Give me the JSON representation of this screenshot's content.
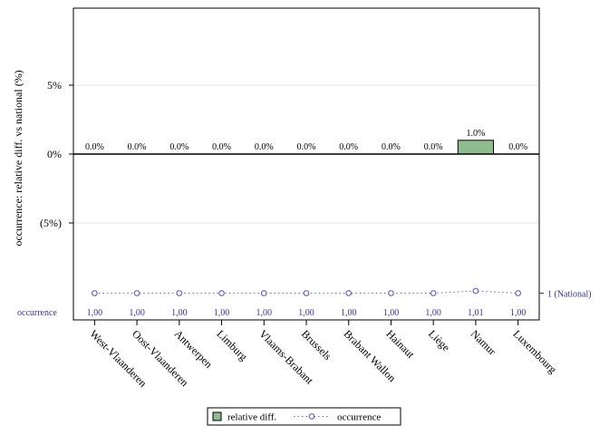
{
  "chart_data": {
    "type": "bar",
    "title": "",
    "xlabel": "",
    "ylabel": "occurrence: relative diff. vs national (%)",
    "ylim": [
      -0.1,
      0.1
    ],
    "yticks": [
      {
        "value": 0.05,
        "label": "5%"
      },
      {
        "value": 0.0,
        "label": "0%"
      },
      {
        "value": -0.05,
        "label": "(5%)"
      }
    ],
    "grid": true,
    "categories": [
      "West-Vlaanderen",
      "Oost-Vlaanderen",
      "Antwerpen",
      "Limburg",
      "Vlaams-Brabant",
      "Brussels",
      "Brabant Wallon",
      "Hainaut",
      "Liège",
      "Namur",
      "Luxembourg"
    ],
    "series": [
      {
        "name": "relative diff.",
        "type": "bar",
        "color": "#8fbc8f",
        "values": [
          0.0,
          0.0,
          0.0,
          0.0,
          0.0,
          0.0,
          0.0,
          0.0,
          0.0,
          0.01,
          0.0
        ],
        "labels": [
          "0.0%",
          "0.0%",
          "0.0%",
          "0.0%",
          "0.0%",
          "0.0%",
          "0.0%",
          "0.0%",
          "0.0%",
          "1.0%",
          "0.0%"
        ]
      },
      {
        "name": "occurrence",
        "type": "line",
        "color": "#6666cc",
        "values": [
          1.0,
          1.0,
          1.0,
          1.0,
          1.0,
          1.0,
          1.0,
          1.0,
          1.0,
          1.01,
          1.0
        ],
        "labels": [
          "1,00",
          "1,00",
          "1,00",
          "1,00",
          "1,00",
          "1,00",
          "1,00",
          "1,00",
          "1,00",
          "1,01",
          "1,00"
        ]
      }
    ],
    "reference_label": "1 (National)",
    "occurrence_row_label": "occurrence",
    "legend": {
      "placement": "bottom-center",
      "items": [
        {
          "label": "relative diff.",
          "kind": "bar"
        },
        {
          "label": "occurrence",
          "kind": "line"
        }
      ]
    }
  }
}
